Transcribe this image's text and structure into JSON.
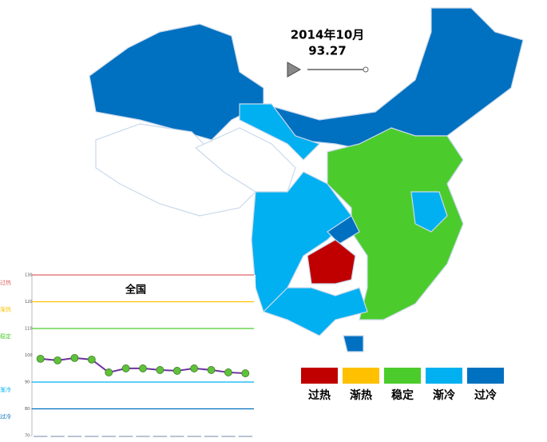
{
  "header": {
    "date": "2014年10月",
    "value": "93.27"
  },
  "legend": [
    {
      "label": "过热",
      "color": "#c00000"
    },
    {
      "label": "渐热",
      "color": "#ffc000"
    },
    {
      "label": "稳定",
      "color": "#4ccc2c"
    },
    {
      "label": "渐冷",
      "color": "#00b0f0"
    },
    {
      "label": "过冷",
      "color": "#0070c0"
    }
  ],
  "chart_data": {
    "type": "line",
    "title": "全国",
    "categories": [
      null,
      null,
      null,
      null,
      null,
      null,
      null,
      null,
      null,
      null,
      null,
      null,
      null
    ],
    "series": [
      {
        "color": "#7030a0",
        "marker_color": "#5fc23a",
        "values": [
          98.7,
          98.1,
          99,
          98.4,
          93.6,
          95.1,
          95.1,
          94.5,
          94.2,
          95.1,
          94.5,
          93.6,
          93.27
        ]
      }
    ],
    "ylim": [
      70,
      130
    ],
    "yticks": [
      70,
      80,
      90,
      100,
      110,
      120,
      130
    ],
    "bands": [
      {
        "label": "过热",
        "value": 130,
        "color": "#e06666"
      },
      {
        "label": "渐热",
        "value": 120,
        "color": "#ffc000"
      },
      {
        "label": "稳定",
        "value": 110,
        "color": "#4ccc2c"
      },
      {
        "label": "渐冷",
        "value": 90,
        "color": "#00b0f0"
      },
      {
        "label": "过冷",
        "value": 80,
        "color": "#0070c0"
      }
    ]
  }
}
